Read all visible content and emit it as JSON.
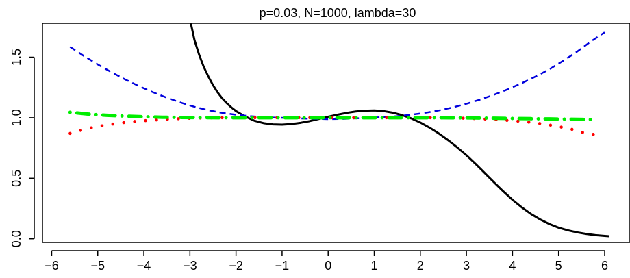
{
  "chart_data": {
    "type": "line",
    "title": "p=0.03, N=1000, lambda=30",
    "xlabel": "",
    "ylabel": "",
    "xlim": [
      -6.2,
      6.55
    ],
    "ylim": [
      -0.03,
      1.78
    ],
    "x_ticks": [
      -6,
      -5,
      -4,
      -3,
      -2,
      -1,
      0,
      1,
      2,
      3,
      4,
      5,
      6
    ],
    "y_ticks": [
      0.0,
      0.5,
      1.0,
      1.5
    ],
    "x_tick_labels": [
      "−6",
      "−5",
      "−4",
      "−3",
      "−2",
      "−1",
      "0",
      "1",
      "2",
      "3",
      "4",
      "5",
      "6"
    ],
    "y_tick_labels": [
      "0.0",
      "0.5",
      "1.0",
      "1.5"
    ],
    "grid": false,
    "legend": "none",
    "series": [
      {
        "style": "solid",
        "color": "#000000",
        "points": [
          [
            -2.98,
            1.78
          ],
          [
            -2.9,
            1.64
          ],
          [
            -2.8,
            1.52
          ],
          [
            -2.7,
            1.42
          ],
          [
            -2.6,
            1.34
          ],
          [
            -2.5,
            1.27
          ],
          [
            -2.4,
            1.21
          ],
          [
            -2.3,
            1.16
          ],
          [
            -2.2,
            1.12
          ],
          [
            -2.1,
            1.085
          ],
          [
            -2.0,
            1.055
          ],
          [
            -1.8,
            1.01
          ],
          [
            -1.6,
            0.975
          ],
          [
            -1.4,
            0.955
          ],
          [
            -1.2,
            0.945
          ],
          [
            -1.0,
            0.943
          ],
          [
            -0.8,
            0.948
          ],
          [
            -0.6,
            0.958
          ],
          [
            -0.4,
            0.972
          ],
          [
            -0.2,
            0.99
          ],
          [
            0.0,
            1.008
          ],
          [
            0.2,
            1.025
          ],
          [
            0.4,
            1.04
          ],
          [
            0.6,
            1.052
          ],
          [
            0.8,
            1.058
          ],
          [
            1.0,
            1.06
          ],
          [
            1.2,
            1.055
          ],
          [
            1.4,
            1.042
          ],
          [
            1.6,
            1.022
          ],
          [
            1.8,
            0.995
          ],
          [
            2.0,
            0.96
          ],
          [
            2.2,
            0.918
          ],
          [
            2.4,
            0.87
          ],
          [
            2.6,
            0.815
          ],
          [
            2.8,
            0.755
          ],
          [
            3.0,
            0.69
          ],
          [
            3.2,
            0.618
          ],
          [
            3.4,
            0.542
          ],
          [
            3.6,
            0.466
          ],
          [
            3.8,
            0.392
          ],
          [
            4.0,
            0.322
          ],
          [
            4.2,
            0.26
          ],
          [
            4.4,
            0.205
          ],
          [
            4.6,
            0.16
          ],
          [
            4.8,
            0.122
          ],
          [
            5.0,
            0.092
          ],
          [
            5.2,
            0.07
          ],
          [
            5.4,
            0.053
          ],
          [
            5.6,
            0.04
          ],
          [
            5.8,
            0.03
          ],
          [
            6.0,
            0.024
          ],
          [
            6.1,
            0.021
          ]
        ]
      },
      {
        "style": "dashed",
        "color": "#0000dd",
        "points": [
          [
            -5.6,
            1.585
          ],
          [
            -5.3,
            1.51
          ],
          [
            -5.0,
            1.44
          ],
          [
            -4.7,
            1.375
          ],
          [
            -4.4,
            1.315
          ],
          [
            -4.1,
            1.26
          ],
          [
            -3.8,
            1.21
          ],
          [
            -3.5,
            1.165
          ],
          [
            -3.2,
            1.125
          ],
          [
            -2.9,
            1.09
          ],
          [
            -2.6,
            1.062
          ],
          [
            -2.3,
            1.04
          ],
          [
            -2.0,
            1.025
          ],
          [
            -1.7,
            1.013
          ],
          [
            -1.4,
            1.005
          ],
          [
            -1.1,
            1.0
          ],
          [
            -0.8,
            0.997
          ],
          [
            -0.5,
            0.993
          ],
          [
            -0.2,
            0.99
          ],
          [
            0.0,
            0.988
          ],
          [
            0.3,
            0.99
          ],
          [
            0.6,
            0.995
          ],
          [
            0.9,
            1.0
          ],
          [
            1.2,
            1.005
          ],
          [
            1.5,
            1.013
          ],
          [
            1.8,
            1.025
          ],
          [
            2.1,
            1.04
          ],
          [
            2.4,
            1.06
          ],
          [
            2.7,
            1.085
          ],
          [
            3.0,
            1.115
          ],
          [
            3.3,
            1.15
          ],
          [
            3.6,
            1.19
          ],
          [
            3.9,
            1.235
          ],
          [
            4.2,
            1.285
          ],
          [
            4.5,
            1.34
          ],
          [
            4.8,
            1.4
          ],
          [
            5.1,
            1.47
          ],
          [
            5.4,
            1.545
          ],
          [
            5.7,
            1.63
          ],
          [
            6.0,
            1.705
          ]
        ]
      },
      {
        "style": "dotted",
        "color": "#ff0000",
        "points": [
          [
            -5.6,
            0.87
          ],
          [
            -5.28,
            0.905
          ],
          [
            -4.96,
            0.93
          ],
          [
            -4.64,
            0.95
          ],
          [
            -4.32,
            0.965
          ],
          [
            -4.0,
            0.975
          ],
          [
            -3.68,
            0.983
          ],
          [
            -3.36,
            0.99
          ],
          [
            -3.04,
            0.995
          ],
          [
            -2.72,
            0.998
          ],
          [
            -2.4,
            1.0
          ],
          [
            -2.08,
            1.0
          ],
          [
            -1.76,
            1.0
          ],
          [
            -1.44,
            1.0
          ],
          [
            -1.12,
            1.0
          ],
          [
            -0.8,
            1.0
          ],
          [
            -0.48,
            1.0
          ],
          [
            -0.16,
            1.0
          ],
          [
            0.16,
            1.0
          ],
          [
            0.48,
            1.0
          ],
          [
            0.8,
            1.0
          ],
          [
            1.12,
            1.0
          ],
          [
            1.44,
            1.0
          ],
          [
            1.76,
            1.0
          ],
          [
            2.08,
            1.0
          ],
          [
            2.4,
            1.0
          ],
          [
            2.72,
            0.998
          ],
          [
            3.04,
            0.995
          ],
          [
            3.36,
            0.99
          ],
          [
            3.68,
            0.983
          ],
          [
            4.0,
            0.975
          ],
          [
            4.32,
            0.965
          ],
          [
            4.64,
            0.95
          ],
          [
            4.96,
            0.93
          ],
          [
            5.28,
            0.905
          ],
          [
            5.6,
            0.87
          ],
          [
            5.8,
            0.86
          ]
        ]
      },
      {
        "style": "dotdash",
        "color": "#00ee00",
        "points": [
          [
            -5.6,
            1.045
          ],
          [
            -5.2,
            1.03
          ],
          [
            -4.8,
            1.02
          ],
          [
            -4.4,
            1.013
          ],
          [
            -4.0,
            1.008
          ],
          [
            -3.6,
            1.004
          ],
          [
            -3.2,
            1.002
          ],
          [
            -2.8,
            1.001
          ],
          [
            -2.4,
            1.0
          ],
          [
            -2.0,
            1.0
          ],
          [
            -1.6,
            1.0
          ],
          [
            -1.2,
            1.0
          ],
          [
            -0.8,
            1.0
          ],
          [
            -0.4,
            1.0
          ],
          [
            0.0,
            1.0
          ],
          [
            0.4,
            1.0
          ],
          [
            0.8,
            1.0
          ],
          [
            1.2,
            1.0
          ],
          [
            1.6,
            1.0
          ],
          [
            2.0,
            1.0
          ],
          [
            2.4,
            1.0
          ],
          [
            2.8,
            0.999
          ],
          [
            3.2,
            0.998
          ],
          [
            3.6,
            0.996
          ],
          [
            4.0,
            0.994
          ],
          [
            4.4,
            0.992
          ],
          [
            4.8,
            0.99
          ],
          [
            5.2,
            0.988
          ],
          [
            5.6,
            0.986
          ],
          [
            5.8,
            0.985
          ]
        ]
      }
    ]
  }
}
